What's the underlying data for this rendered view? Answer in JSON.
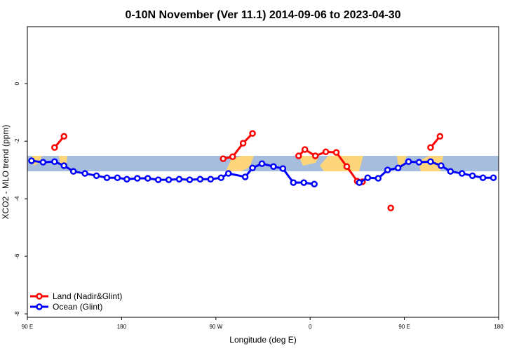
{
  "chart_data": {
    "type": "line",
    "title": "0-10N November (Ver 11.1)   2014-09-06 to 2023-04-30",
    "x_label": "Longitude (deg E)",
    "y_label": "XCO2 - MLO trend (ppm)",
    "xlim": [
      90,
      540
    ],
    "ylim": [
      -8.12,
      1.98
    ],
    "xticks": [
      {
        "value": 90,
        "label": "90 E"
      },
      {
        "value": 180,
        "label": "180"
      },
      {
        "value": 270,
        "label": "90 W"
      },
      {
        "value": 360,
        "label": "0"
      },
      {
        "value": 450,
        "label": "90 E"
      },
      {
        "value": 540,
        "label": "180"
      }
    ],
    "yticks": [
      0,
      -2,
      -4,
      -6,
      -8
    ],
    "legend": "bottom-left",
    "series": [
      {
        "name": "Land (Nadir&Glint)",
        "color": "#ff0000",
        "x": [
          116,
          125,
          null,
          277,
          286,
          296,
          305,
          null,
          349,
          355,
          365,
          375,
          385,
          395,
          405,
          410,
          null,
          437,
          null,
          475,
          484
        ],
        "values": [
          -2.22,
          -1.83,
          null,
          -2.61,
          -2.54,
          -2.07,
          -1.73,
          null,
          -2.51,
          -2.29,
          -2.51,
          -2.37,
          -2.39,
          -2.88,
          -3.39,
          -3.41,
          null,
          -4.32,
          null,
          -2.22,
          -1.83
        ]
      },
      {
        "name": "Ocean (Glint)",
        "color": "#0000ff",
        "x": [
          94,
          105,
          116,
          125,
          134,
          145,
          156,
          166,
          176,
          185,
          195,
          205,
          215,
          225,
          235,
          245,
          255,
          265,
          275,
          282,
          298,
          305,
          314,
          325,
          334,
          344,
          354,
          364,
          null,
          407,
          415,
          425,
          434,
          444,
          454,
          464,
          475,
          485,
          494,
          505,
          515,
          525,
          535
        ],
        "values": [
          -2.68,
          -2.73,
          -2.71,
          -2.85,
          -3.05,
          -3.12,
          -3.2,
          -3.27,
          -3.27,
          -3.32,
          -3.29,
          -3.29,
          -3.34,
          -3.34,
          -3.32,
          -3.34,
          -3.32,
          -3.32,
          -3.27,
          -3.12,
          -3.24,
          -2.93,
          -2.78,
          -2.88,
          -2.95,
          -3.44,
          -3.44,
          -3.49,
          null,
          -3.44,
          -3.27,
          -3.29,
          -3.0,
          -2.93,
          -2.71,
          -2.73,
          -2.71,
          -2.85,
          -3.05,
          -3.12,
          -3.2,
          -3.27,
          -3.27
        ]
      }
    ]
  }
}
